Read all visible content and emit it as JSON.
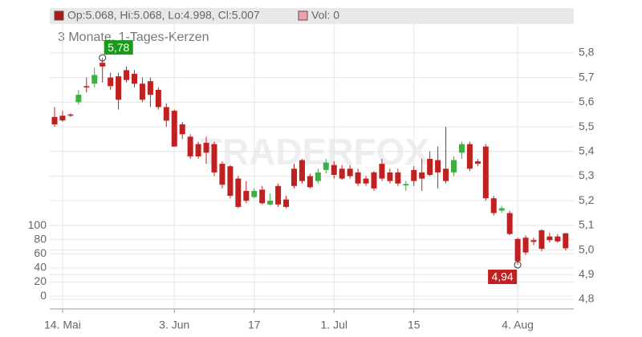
{
  "chart_data": {
    "type": "candlestick",
    "legend_text": "Op:5.068, Hi:5.068, Lo:4.998, Cl:5.007",
    "volume_text": "Vol: 0",
    "subtitle": "3 Monate, 1-Tages-Kerzen",
    "watermark": "TRADERFOX",
    "up_color": "#3cb043",
    "down_color": "#c0201f",
    "grid": true,
    "categories": [
      null,
      "14. Mai",
      null,
      null,
      null,
      null,
      null,
      null,
      null,
      null,
      null,
      null,
      null,
      null,
      null,
      "3. Jun",
      null,
      null,
      null,
      null,
      null,
      null,
      null,
      null,
      null,
      "17",
      null,
      null,
      null,
      null,
      null,
      null,
      null,
      null,
      null,
      "1. Jul",
      null,
      null,
      null,
      null,
      null,
      null,
      null,
      null,
      null,
      "15",
      null,
      null,
      null,
      null,
      null,
      null,
      null,
      null,
      null,
      null,
      null,
      null,
      "4. Aug",
      null,
      null,
      null,
      null,
      null,
      null
    ],
    "open": [
      5.54,
      5.545,
      5.55,
      5.6,
      5.665,
      5.675,
      5.76,
      5.7,
      5.705,
      5.73,
      5.715,
      5.675,
      5.685,
      5.65,
      5.58,
      5.565,
      5.51,
      5.46,
      5.43,
      5.435,
      5.43,
      5.35,
      5.34,
      5.29,
      5.24,
      5.215,
      5.245,
      5.185,
      5.26,
      5.205,
      5.33,
      5.365,
      5.3,
      5.28,
      5.325,
      5.345,
      5.33,
      5.33,
      5.315,
      5.29,
      5.315,
      5.35,
      5.315,
      5.315,
      5.262,
      5.325,
      5.315,
      5.37,
      5.365,
      5.33,
      5.315,
      5.395,
      5.43,
      5.36,
      5.42,
      5.21,
      5.16,
      5.15,
      5.045,
      5.05,
      5.04,
      5.08,
      5.055,
      5.055,
      5.068
    ],
    "high": [
      5.58,
      5.565,
      5.555,
      5.65,
      5.7,
      5.74,
      5.78,
      5.72,
      5.72,
      5.745,
      5.73,
      5.7,
      5.7,
      5.66,
      5.595,
      5.57,
      5.52,
      5.47,
      5.44,
      5.46,
      5.44,
      5.36,
      5.345,
      5.3,
      5.28,
      5.25,
      5.26,
      5.23,
      5.27,
      5.22,
      5.35,
      5.37,
      5.31,
      5.33,
      5.37,
      5.36,
      5.345,
      5.345,
      5.33,
      5.3,
      5.32,
      5.37,
      5.33,
      5.33,
      5.28,
      5.34,
      5.37,
      5.4,
      5.42,
      5.5,
      5.38,
      5.44,
      5.44,
      5.37,
      5.43,
      5.22,
      5.18,
      5.16,
      5.05,
      5.06,
      5.05,
      5.085,
      5.07,
      5.065,
      5.068
    ],
    "low": [
      5.5,
      5.52,
      5.54,
      5.59,
      5.64,
      5.66,
      5.68,
      5.65,
      5.57,
      5.68,
      5.66,
      5.6,
      5.58,
      5.57,
      5.5,
      5.42,
      5.45,
      5.37,
      5.37,
      5.35,
      5.3,
      5.25,
      5.21,
      5.17,
      5.19,
      5.21,
      5.185,
      5.18,
      5.175,
      5.17,
      5.25,
      5.27,
      5.25,
      5.27,
      5.31,
      5.29,
      5.285,
      5.29,
      5.26,
      5.26,
      5.24,
      5.28,
      5.27,
      5.26,
      5.24,
      5.26,
      5.24,
      5.3,
      5.25,
      5.27,
      5.3,
      5.37,
      5.32,
      5.34,
      5.2,
      5.14,
      5.15,
      5.06,
      4.94,
      4.98,
      5.02,
      4.995,
      5.03,
      5.03,
      4.998
    ],
    "close": [
      5.51,
      5.526,
      5.545,
      5.63,
      5.66,
      5.71,
      5.745,
      5.665,
      5.61,
      5.69,
      5.675,
      5.61,
      5.63,
      5.58,
      5.525,
      5.42,
      5.47,
      5.38,
      5.38,
      5.395,
      5.315,
      5.265,
      5.22,
      5.175,
      5.2,
      5.24,
      5.19,
      5.2,
      5.185,
      5.175,
      5.26,
      5.28,
      5.255,
      5.315,
      5.355,
      5.305,
      5.29,
      5.3,
      5.27,
      5.27,
      5.25,
      5.29,
      5.28,
      5.27,
      5.268,
      5.28,
      5.29,
      5.305,
      5.315,
      5.28,
      5.365,
      5.43,
      5.33,
      5.35,
      5.21,
      5.15,
      5.17,
      5.065,
      4.955,
      4.99,
      5.033,
      5.005,
      5.04,
      5.035,
      5.007
    ],
    "annotations": [
      {
        "text": "5,78",
        "value": 5.78,
        "color": "#1a9a1a"
      },
      {
        "text": "4,94",
        "value": 4.94,
        "color": "#c0201f"
      }
    ],
    "ylim": [
      4.761,
      5.917
    ],
    "yticks": [
      {
        "value": 4.8,
        "label": "4,8"
      },
      {
        "value": 4.9,
        "label": "4,9"
      },
      {
        "value": 5.0,
        "label": "5,0"
      },
      {
        "value": 5.1,
        "label": "5,1"
      },
      {
        "value": 5.2,
        "label": "5,2"
      },
      {
        "value": 5.3,
        "label": "5,3"
      },
      {
        "value": 5.4,
        "label": "5,4"
      },
      {
        "value": 5.5,
        "label": "5,5"
      },
      {
        "value": 5.6,
        "label": "5,6"
      },
      {
        "value": 5.7,
        "label": "5,7"
      },
      {
        "value": 5.8,
        "label": "5,8"
      }
    ],
    "y2lim": [
      -18,
      385
    ],
    "y2ticks": [
      0,
      20,
      40,
      60,
      80,
      100
    ]
  }
}
